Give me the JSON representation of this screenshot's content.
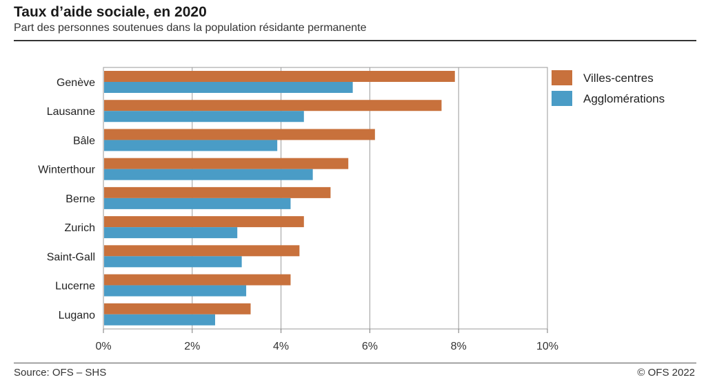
{
  "chart_data": {
    "type": "bar",
    "orientation": "horizontal",
    "title": "Taux d’aide sociale, en 2020",
    "subtitle": "Part des personnes soutenues dans la population résidante permanente",
    "categories": [
      "Genève",
      "Lausanne",
      "Bâle",
      "Winterthour",
      "Berne",
      "Zurich",
      "Saint-Gall",
      "Lucerne",
      "Lugano"
    ],
    "series": [
      {
        "name": "Villes-centres",
        "color": "#c8713c",
        "values": [
          7.9,
          7.6,
          6.1,
          5.5,
          5.1,
          4.5,
          4.4,
          4.2,
          3.3
        ]
      },
      {
        "name": "Agglomérations",
        "color": "#4a9cc6",
        "values": [
          5.6,
          4.5,
          3.9,
          4.7,
          4.2,
          3.0,
          3.1,
          3.2,
          2.5
        ]
      }
    ],
    "xlim": [
      0,
      10
    ],
    "xticks": [
      0,
      2,
      4,
      6,
      8,
      10
    ],
    "xtick_labels": [
      "0%",
      "2%",
      "4%",
      "6%",
      "8%",
      "10%"
    ],
    "grid": true,
    "legend_position": "top-right"
  },
  "footer": {
    "source": "Source: OFS – SHS",
    "copyright": "© OFS 2022"
  }
}
